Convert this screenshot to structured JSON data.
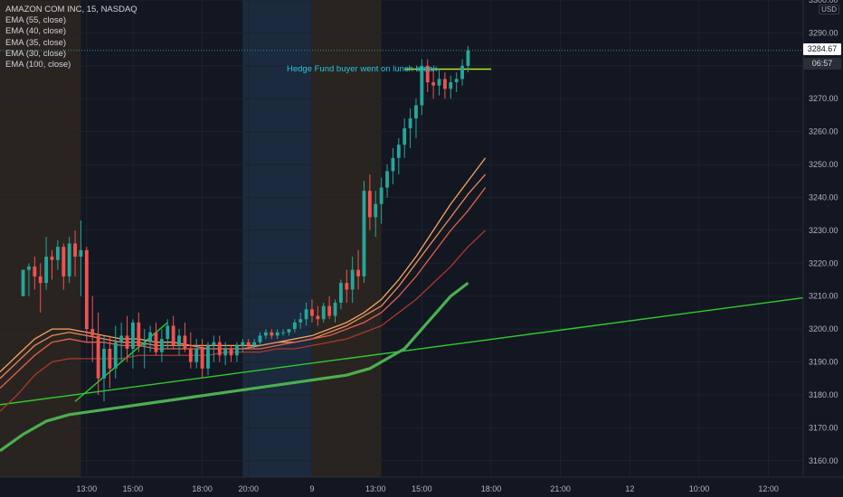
{
  "title": "AMAZON COM INC, 15, NASDAQ",
  "indicators": [
    "EMA (55, close)",
    "EMA (40, close)",
    "EMA (35, close)",
    "EMA (30, close)",
    "EMA (100, close)"
  ],
  "unit": "USD",
  "last_price": "3284.67",
  "countdown": "06:57",
  "annotation": "Hedge Fund buyer went on lunch break",
  "colors": {
    "background": "#131722",
    "up": "#26a69a",
    "down": "#ef5350",
    "session_pre": "#2a2420",
    "session_post": "#1b2a3c",
    "trendline": "#2ecc2e",
    "ema100": "#4caf50"
  },
  "chart_data": {
    "type": "candlestick",
    "ylim": [
      3155,
      3300
    ],
    "yticks": [
      3160,
      3170,
      3180,
      3190,
      3200,
      3210,
      3220,
      3230,
      3240,
      3250,
      3260,
      3270,
      3280,
      3290,
      3300
    ],
    "ytick_labels": [
      "3160.00",
      "3170.00",
      "3180.00",
      "3190.00",
      "3200.00",
      "3210.00",
      "3220.00",
      "3230.00",
      "3240.00",
      "3250.00",
      "3260.00",
      "3270.00",
      "3280.00",
      "3290.00",
      "3300.00"
    ],
    "xticks": [
      {
        "bar": 11,
        "label": "13:00"
      },
      {
        "bar": 19,
        "label": "15:00"
      },
      {
        "bar": 31,
        "label": "18:00"
      },
      {
        "bar": 39,
        "label": "20:00"
      },
      {
        "bar": 50,
        "label": "9"
      },
      {
        "bar": 61,
        "label": "13:00"
      },
      {
        "bar": 69,
        "label": "15:00"
      },
      {
        "bar": 81,
        "label": "18:00"
      },
      {
        "bar": 93,
        "label": "21:00"
      },
      {
        "bar": 105,
        "label": "12"
      },
      {
        "bar": 117,
        "label": "10:00"
      },
      {
        "bar": 129,
        "label": "12:00"
      }
    ],
    "x_range": [
      -4,
      135
    ],
    "sessions": [
      {
        "from": -4,
        "to": 10,
        "kind": "pre"
      },
      {
        "from": 38,
        "to": 50,
        "kind": "post"
      },
      {
        "from": 50,
        "to": 62,
        "kind": "pre"
      }
    ],
    "candles": [
      [
        3210,
        3218,
        3210,
        3218
      ],
      [
        3218,
        3220,
        3210,
        3219
      ],
      [
        3219,
        3222,
        3212,
        3216
      ],
      [
        3216,
        3220,
        3205,
        3214
      ],
      [
        3214,
        3228,
        3212,
        3222
      ],
      [
        3222,
        3224,
        3215,
        3221
      ],
      [
        3221,
        3227,
        3218,
        3225
      ],
      [
        3225,
        3226,
        3212,
        3216
      ],
      [
        3216,
        3228,
        3214,
        3226
      ],
      [
        3226,
        3230,
        3216,
        3222
      ],
      [
        3222,
        3233,
        3210,
        3224
      ],
      [
        3224,
        3225,
        3196,
        3200
      ],
      [
        3200,
        3210,
        3190,
        3198
      ],
      [
        3198,
        3205,
        3180,
        3185
      ],
      [
        3185,
        3198,
        3178,
        3194
      ],
      [
        3194,
        3198,
        3182,
        3188
      ],
      [
        3188,
        3201,
        3185,
        3196
      ],
      [
        3196,
        3202,
        3190,
        3198
      ],
      [
        3198,
        3204,
        3190,
        3194
      ],
      [
        3194,
        3203,
        3188,
        3202
      ],
      [
        3202,
        3205,
        3193,
        3195
      ],
      [
        3195,
        3200,
        3188,
        3196
      ],
      [
        3196,
        3201,
        3193,
        3199
      ],
      [
        3199,
        3202,
        3192,
        3193
      ],
      [
        3193,
        3200,
        3190,
        3197
      ],
      [
        3197,
        3203,
        3194,
        3201
      ],
      [
        3201,
        3204,
        3194,
        3195
      ],
      [
        3195,
        3200,
        3192,
        3198
      ],
      [
        3198,
        3202,
        3193,
        3194
      ],
      [
        3194,
        3199,
        3188,
        3190
      ],
      [
        3190,
        3197,
        3188,
        3194
      ],
      [
        3194,
        3197,
        3185,
        3188
      ],
      [
        3188,
        3196,
        3186,
        3195
      ],
      [
        3195,
        3198,
        3190,
        3196
      ],
      [
        3196,
        3198,
        3190,
        3192
      ],
      [
        3192,
        3196,
        3189,
        3194
      ],
      [
        3194,
        3195,
        3190,
        3192
      ],
      [
        3192,
        3196,
        3190,
        3195
      ],
      [
        3195,
        3197,
        3193,
        3196
      ],
      [
        3196,
        3197,
        3194,
        3195
      ],
      [
        3195,
        3197,
        3194,
        3196
      ],
      [
        3196,
        3199,
        3195,
        3198
      ],
      [
        3198,
        3200,
        3197,
        3199
      ],
      [
        3199,
        3200,
        3197,
        3198
      ],
      [
        3198,
        3200,
        3197,
        3199
      ],
      [
        3199,
        3200,
        3198,
        3199
      ],
      [
        3199,
        3200,
        3198,
        3200
      ],
      [
        3200,
        3203,
        3199,
        3202
      ],
      [
        3202,
        3205,
        3200,
        3203
      ],
      [
        3203,
        3208,
        3201,
        3206
      ],
      [
        3206,
        3209,
        3202,
        3204
      ],
      [
        3204,
        3207,
        3201,
        3203
      ],
      [
        3203,
        3208,
        3202,
        3207
      ],
      [
        3207,
        3210,
        3203,
        3204
      ],
      [
        3204,
        3209,
        3202,
        3208
      ],
      [
        3208,
        3215,
        3206,
        3214
      ],
      [
        3214,
        3218,
        3208,
        3212
      ],
      [
        3212,
        3222,
        3208,
        3218
      ],
      [
        3218,
        3224,
        3212,
        3216
      ],
      [
        3216,
        3245,
        3214,
        3242
      ],
      [
        3242,
        3247,
        3230,
        3234
      ],
      [
        3234,
        3242,
        3228,
        3238
      ],
      [
        3238,
        3246,
        3232,
        3243
      ],
      [
        3243,
        3250,
        3240,
        3248
      ],
      [
        3248,
        3255,
        3244,
        3252
      ],
      [
        3252,
        3258,
        3247,
        3256
      ],
      [
        3256,
        3264,
        3252,
        3261
      ],
      [
        3261,
        3267,
        3255,
        3264
      ],
      [
        3264,
        3270,
        3258,
        3268
      ],
      [
        3268,
        3282,
        3265,
        3280
      ],
      [
        3280,
        3282,
        3272,
        3275
      ],
      [
        3275,
        3279,
        3270,
        3274
      ],
      [
        3274,
        3279,
        3271,
        3276
      ],
      [
        3276,
        3278,
        3270,
        3273
      ],
      [
        3273,
        3277,
        3270,
        3275
      ],
      [
        3275,
        3278,
        3272,
        3276
      ],
      [
        3276,
        3282,
        3274,
        3280
      ],
      [
        3280,
        3286,
        3278,
        3284.67
      ]
    ],
    "first_candle_bar": 0,
    "candle_bar_offset": [
      0,
      1,
      2,
      3,
      4,
      5,
      6,
      7,
      8,
      9,
      10,
      11,
      12,
      13,
      14,
      15,
      16,
      17,
      18,
      19,
      20,
      21,
      22,
      23,
      24,
      25,
      26,
      27,
      28,
      29,
      30,
      31,
      32,
      33,
      34,
      35,
      36,
      37,
      38,
      39,
      40,
      41,
      42,
      43,
      44,
      45,
      46,
      47,
      48,
      49,
      50,
      51,
      52,
      53,
      54,
      55,
      56,
      57,
      58,
      59,
      60,
      61,
      62,
      63,
      64,
      65,
      66,
      67,
      68,
      69,
      70,
      71,
      72,
      73,
      74,
      75,
      76,
      77
    ],
    "ema_lines": [
      {
        "name": "EMA (30, close)",
        "color": "#f5a561",
        "values": [
          3187,
          3192,
          3197,
          3200,
          3200,
          3199,
          3198,
          3197,
          3197,
          3196,
          3196,
          3195,
          3195,
          3195,
          3195,
          3195,
          3196,
          3197,
          3198,
          3200,
          3202,
          3205,
          3209,
          3215,
          3222,
          3230,
          3238,
          3245,
          3252
        ]
      },
      {
        "name": "EMA (35, close)",
        "color": "#e88a5a",
        "values": [
          3185,
          3190,
          3195,
          3198,
          3199,
          3198,
          3197,
          3196,
          3196,
          3195,
          3195,
          3195,
          3194,
          3194,
          3194,
          3195,
          3196,
          3196,
          3197,
          3199,
          3201,
          3204,
          3207,
          3213,
          3220,
          3227,
          3234,
          3241,
          3247
        ]
      },
      {
        "name": "EMA (40, close)",
        "color": "#e0604a",
        "values": [
          3182,
          3187,
          3192,
          3196,
          3197,
          3196,
          3196,
          3195,
          3195,
          3194,
          3194,
          3194,
          3194,
          3194,
          3194,
          3194,
          3195,
          3196,
          3197,
          3198,
          3200,
          3202,
          3205,
          3210,
          3216,
          3223,
          3230,
          3236,
          3243
        ]
      },
      {
        "name": "EMA (55, close)",
        "color": "#a83a2a",
        "values": [
          3175,
          3180,
          3186,
          3190,
          3191,
          3191,
          3191,
          3191,
          3192,
          3192,
          3192,
          3192,
          3192,
          3193,
          3193,
          3193,
          3194,
          3194,
          3195,
          3196,
          3197,
          3199,
          3201,
          3205,
          3209,
          3214,
          3219,
          3225,
          3230
        ]
      },
      {
        "name": "EMA (100, close)",
        "color": "#4caf50",
        "values": [
          3163,
          3168,
          3172,
          3174,
          3175,
          3176,
          3177,
          3178,
          3179,
          3180,
          3181,
          3182,
          3183,
          3184,
          3185,
          3186,
          3187,
          3188,
          3190,
          3192,
          3194,
          3198,
          3202,
          3206,
          3210,
          3214
        ]
      }
    ],
    "ema_bars": [
      -4,
      -1,
      2,
      5,
      8,
      11,
      14,
      17,
      20,
      23,
      26,
      29,
      32,
      35,
      38,
      41,
      44,
      47,
      50,
      53,
      56,
      59,
      62,
      65,
      68,
      71,
      74,
      77,
      80
    ],
    "ema100_bars": [
      -4,
      0,
      4,
      8,
      12,
      16,
      20,
      24,
      28,
      32,
      36,
      40,
      44,
      48,
      52,
      56,
      58,
      60,
      62,
      64,
      66,
      68,
      70,
      72,
      74,
      77
    ],
    "trendlines": [
      {
        "from": [
          -4,
          3177
        ],
        "to": [
          135,
          3209.5
        ]
      },
      {
        "from": [
          9,
          3178
        ],
        "to": [
          25,
          3202
        ]
      }
    ],
    "resistance_line": {
      "from": [
        66,
        3279
      ],
      "to": [
        81,
        3279
      ]
    }
  }
}
